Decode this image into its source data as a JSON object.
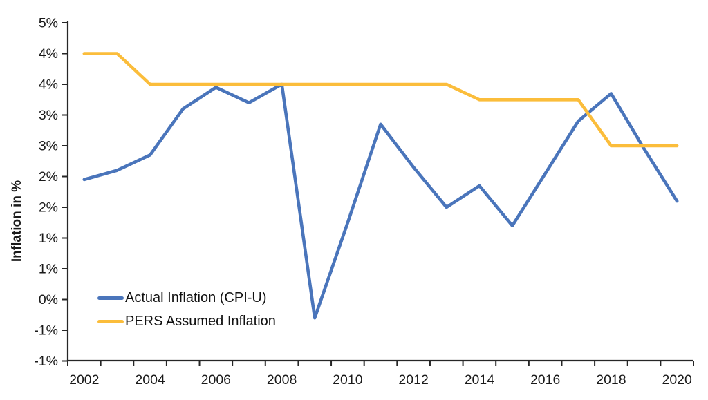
{
  "chart_data": {
    "type": "line",
    "x": [
      2002,
      2003,
      2004,
      2005,
      2006,
      2007,
      2008,
      2009,
      2010,
      2011,
      2012,
      2013,
      2014,
      2015,
      2016,
      2017,
      2018,
      2019,
      2020
    ],
    "x_tick_labels": [
      "2002",
      "2004",
      "2006",
      "2008",
      "2010",
      "2012",
      "2014",
      "2016",
      "2018",
      "2020"
    ],
    "x_label_every": 2,
    "y_axis": {
      "title": "Inflation in %",
      "min": -1.0,
      "max": 4.5,
      "step": 0.5,
      "tick_labels_bottom_to_top": [
        "-1%",
        "-1%",
        "0%",
        "1%",
        "1%",
        "2%",
        "2%",
        "3%",
        "3%",
        "4%",
        "4%",
        "5%"
      ]
    },
    "series": [
      {
        "name": "Actual Inflation (CPI-U)",
        "color": "#4A75BB",
        "values": [
          1.95,
          2.1,
          2.35,
          3.1,
          3.45,
          3.2,
          3.5,
          -0.3,
          1.25,
          2.85,
          2.15,
          1.5,
          1.85,
          1.2,
          2.05,
          2.9,
          3.35,
          2.45,
          1.6
        ]
      },
      {
        "name": "PERS Assumed Inflation",
        "color": "#FBBD3B",
        "values": [
          4.0,
          4.0,
          3.5,
          3.5,
          3.5,
          3.5,
          3.5,
          3.5,
          3.5,
          3.5,
          3.5,
          3.5,
          3.25,
          3.25,
          3.25,
          3.25,
          2.5,
          2.5,
          2.5
        ]
      }
    ],
    "legend": {
      "position": "inside-lower-left"
    },
    "grid": "off",
    "axis_color": "#262626",
    "tick_text_color": "#1a1a1a",
    "background": "#ffffff"
  }
}
